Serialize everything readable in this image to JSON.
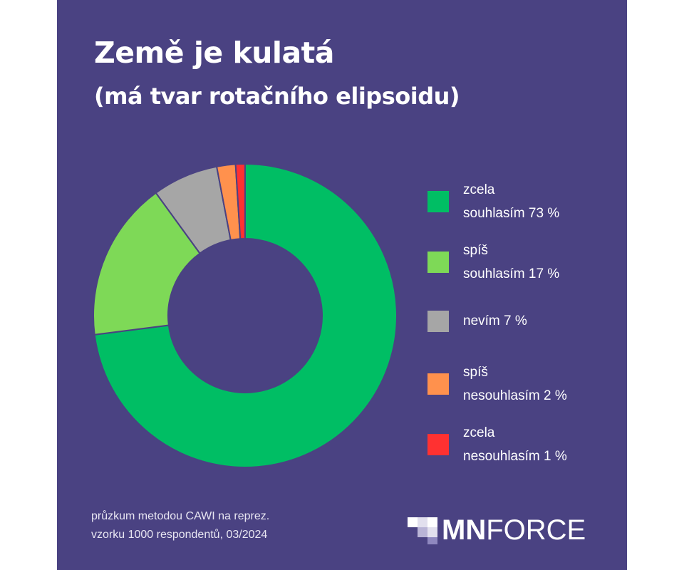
{
  "title": "Země je kulatá",
  "subtitle": "(má tvar rotačního elipsoidu)",
  "chart_data": {
    "type": "pie",
    "variant": "donut",
    "title": "Země je kulatá",
    "subtitle": "(má tvar rotačního elipsoidu)",
    "unit": "%",
    "legend_position": "right",
    "slices": [
      {
        "label": "zcela souhlasím 73 %",
        "value": 73,
        "color": "#00be64"
      },
      {
        "label": "spíš souhlasím 17 %",
        "value": 17,
        "color": "#7ed957"
      },
      {
        "label": "nevím 7 %",
        "value": 7,
        "color": "#a6a6a6"
      },
      {
        "label": "spíš nesouhlasím 2 %",
        "value": 2,
        "color": "#ff914d"
      },
      {
        "label": "zcela nesouhlasím 1 %",
        "value": 1,
        "color": "#ff3131"
      }
    ]
  },
  "legend": [
    {
      "line1": "zcela",
      "line2": "souhlasím 73 %"
    },
    {
      "line1": "spíš",
      "line2": "souhlasím 17 %"
    },
    {
      "line1": "nevím 7 %",
      "line2": ""
    },
    {
      "line1": "spíš",
      "line2": "nesouhlasím 2 %"
    },
    {
      "line1": "zcela",
      "line2": "nesouhlasím 1 %"
    }
  ],
  "footnote": {
    "line1": "průzkum metodou CAWI na reprez.",
    "line2": "vzorku 1000 respondentů, 03/2024"
  },
  "logo": {
    "mn": "MN",
    "rest": "FORCE"
  },
  "colors": {
    "background": "#4a4282",
    "text": "#ffffff"
  }
}
